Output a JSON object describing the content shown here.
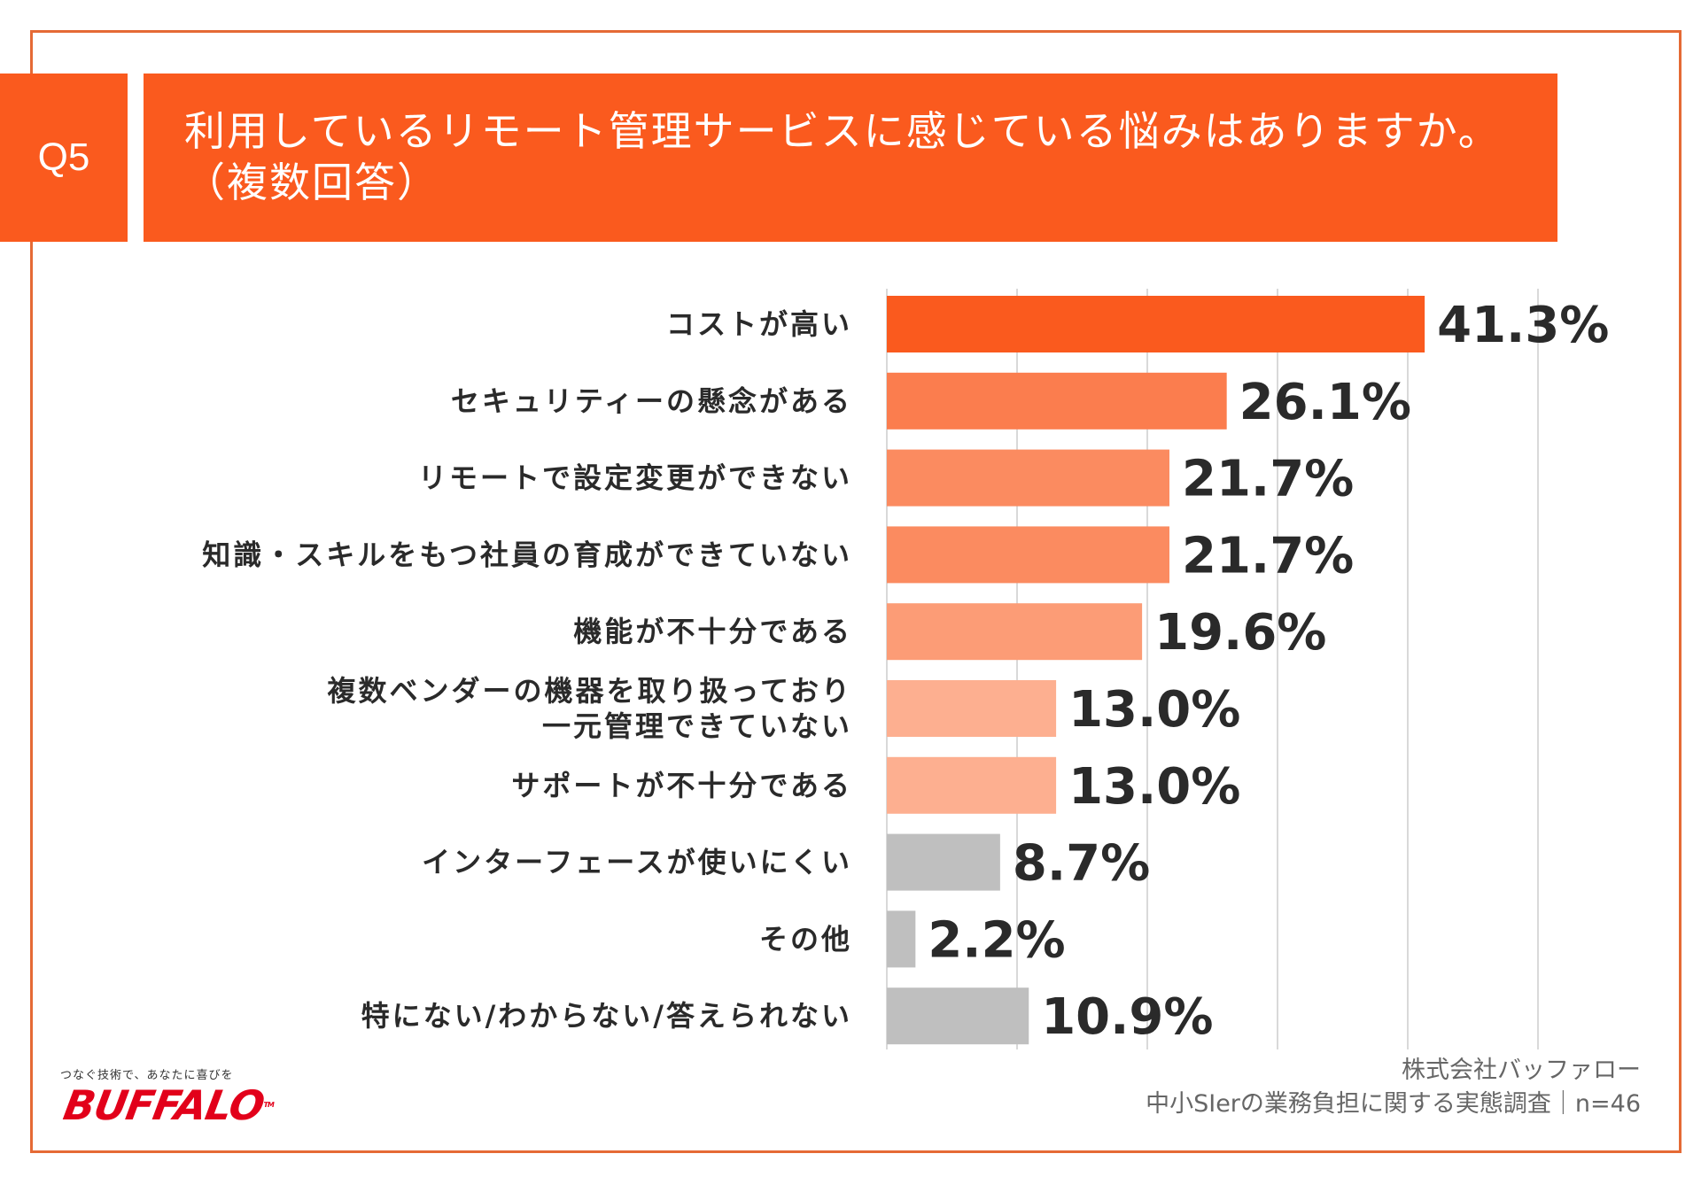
{
  "question": {
    "badge": "Q5",
    "title_line1": "利用しているリモート管理サービスに感じている悩みはありますか。",
    "title_line2": "（複数回答）"
  },
  "colors": {
    "frame": "#e56a35",
    "header": "#fa5a1e",
    "grid": "#d9d9d9",
    "text": "#2a2a2a"
  },
  "chart_data": {
    "type": "bar",
    "orientation": "horizontal",
    "xlim": [
      0,
      50
    ],
    "grid_x": [
      10,
      20,
      30,
      40,
      50
    ],
    "categories": [
      "コストが高い",
      "セキュリティーの懸念がある",
      "リモートで設定変更ができない",
      "知識・スキルをもつ社員の育成ができていない",
      "機能が不十分である",
      "複数ベンダーの機器を取り扱っており\n一元管理できていない",
      "サポートが不十分である",
      "インターフェースが使いにくい",
      "その他",
      "特にない/わからない/答えられない"
    ],
    "values": [
      41.3,
      26.1,
      21.7,
      21.7,
      19.6,
      13.0,
      13.0,
      8.7,
      2.2,
      10.9
    ],
    "value_labels": [
      "41.3%",
      "26.1%",
      "21.7%",
      "21.7%",
      "19.6%",
      "13.0%",
      "13.0%",
      "8.7%",
      "2.2%",
      "10.9%"
    ],
    "bar_colors": [
      "#fa5a1e",
      "#fb7d4e",
      "#fb8b60",
      "#fb8b60",
      "#fc9c76",
      "#fdaf90",
      "#fdaf90",
      "#bfbfbf",
      "#bfbfbf",
      "#bfbfbf"
    ]
  },
  "footer": {
    "logo_tagline": "つなぐ技術で、あなたに喜びを",
    "logo_text": "BUFFALO",
    "logo_tm": "TM",
    "company": "株式会社バッファロー",
    "survey": "中小SIerの業務負担に関する実態調査｜n=46"
  }
}
